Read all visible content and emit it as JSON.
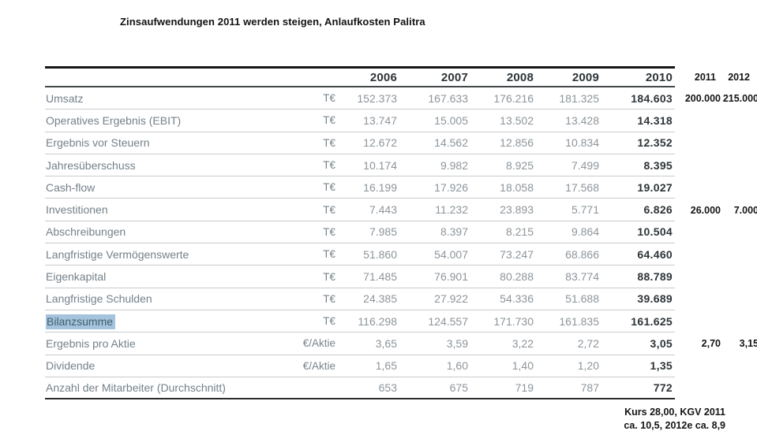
{
  "title": "Zinsaufwendungen 2011 werden steigen, Anlaufkosten Palitra",
  "table": {
    "year_headers": [
      "2006",
      "2007",
      "2008",
      "2009",
      "2010"
    ],
    "extra_year_headers": [
      "2011",
      "2012"
    ],
    "rows": [
      {
        "label": "Umsatz",
        "unit": "T€",
        "values": [
          "152.373",
          "167.633",
          "176.216",
          "181.325",
          "184.603"
        ],
        "extra": [
          "200.000",
          "215.000"
        ]
      },
      {
        "label": "Operatives Ergebnis (EBIT)",
        "unit": "T€",
        "values": [
          "13.747",
          "15.005",
          "13.502",
          "13.428",
          "14.318"
        ],
        "extra": [
          "",
          ""
        ]
      },
      {
        "label": "Ergebnis vor Steuern",
        "unit": "T€",
        "values": [
          "12.672",
          "14.562",
          "12.856",
          "10.834",
          "12.352"
        ],
        "extra": [
          "",
          ""
        ]
      },
      {
        "label": "Jahresüberschuss",
        "unit": "T€",
        "values": [
          "10.174",
          "9.982",
          "8.925",
          "7.499",
          "8.395"
        ],
        "extra": [
          "",
          ""
        ]
      },
      {
        "label": "Cash-flow",
        "unit": "T€",
        "values": [
          "16.199",
          "17.926",
          "18.058",
          "17.568",
          "19.027"
        ],
        "extra": [
          "",
          ""
        ]
      },
      {
        "label": "Investitionen",
        "unit": "T€",
        "values": [
          "7.443",
          "11.232",
          "23.893",
          "5.771",
          "6.826"
        ],
        "extra": [
          "26.000",
          "7.000"
        ]
      },
      {
        "label": "Abschreibungen",
        "unit": "T€",
        "values": [
          "7.985",
          "8.397",
          "8.215",
          "9.864",
          "10.504"
        ],
        "extra": [
          "",
          ""
        ]
      },
      {
        "label": "Langfristige Vermögenswerte",
        "unit": "T€",
        "values": [
          "51.860",
          "54.007",
          "73.247",
          "68.866",
          "64.460"
        ],
        "extra": [
          "",
          ""
        ]
      },
      {
        "label": "Eigenkapital",
        "unit": "T€",
        "values": [
          "71.485",
          "76.901",
          "80.288",
          "83.774",
          "88.789"
        ],
        "extra": [
          "",
          ""
        ]
      },
      {
        "label": "Langfristige Schulden",
        "unit": "T€",
        "values": [
          "24.385",
          "27.922",
          "54.336",
          "51.688",
          "39.689"
        ],
        "extra": [
          "",
          ""
        ]
      },
      {
        "label": "Bilanzsumme",
        "unit": "T€",
        "values": [
          "116.298",
          "124.557",
          "171.730",
          "161.835",
          "161.625"
        ],
        "extra": [
          "",
          ""
        ],
        "highlighted": true
      },
      {
        "label": "Ergebnis pro Aktie",
        "unit": "€/Aktie",
        "values": [
          "3,65",
          "3,59",
          "3,22",
          "2,72",
          "3,05"
        ],
        "extra": [
          "2,70",
          "3,15"
        ]
      },
      {
        "label": "Dividende",
        "unit": "€/Aktie",
        "values": [
          "1,65",
          "1,60",
          "1,40",
          "1,20",
          "1,35"
        ],
        "extra": [
          "",
          ""
        ]
      },
      {
        "label": "Anzahl der Mitarbeiter (Durchschnitt)",
        "unit": "",
        "values": [
          "653",
          "675",
          "719",
          "787",
          "772"
        ],
        "extra": [
          "",
          ""
        ]
      }
    ]
  },
  "annotation": {
    "line1": "Kurs 28,00, KGV 2011",
    "line2": "ca. 10,5, 2012e ca. 8,9"
  },
  "colors": {
    "highlight": "#a5c3dc",
    "label_text": "#74818a",
    "value_text": "#8d959b",
    "bold_text": "#2e3438",
    "annotation_text": "#141414"
  }
}
